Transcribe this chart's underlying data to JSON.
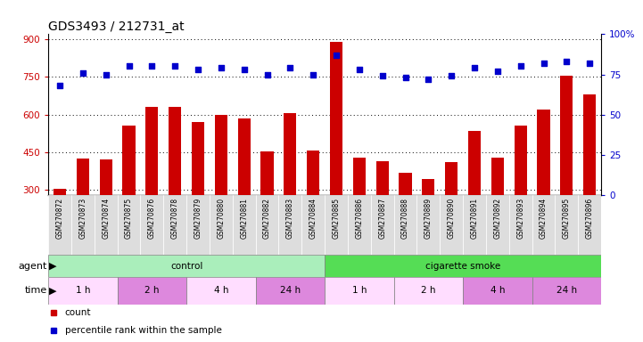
{
  "title": "GDS3493 / 212731_at",
  "samples": [
    "GSM270872",
    "GSM270873",
    "GSM270874",
    "GSM270875",
    "GSM270876",
    "GSM270878",
    "GSM270879",
    "GSM270880",
    "GSM270881",
    "GSM270882",
    "GSM270883",
    "GSM270884",
    "GSM270885",
    "GSM270886",
    "GSM270887",
    "GSM270888",
    "GSM270889",
    "GSM270890",
    "GSM270891",
    "GSM270892",
    "GSM270893",
    "GSM270894",
    "GSM270895",
    "GSM270896"
  ],
  "counts": [
    305,
    425,
    422,
    555,
    630,
    630,
    570,
    600,
    585,
    455,
    605,
    458,
    890,
    430,
    415,
    370,
    345,
    410,
    535,
    430,
    555,
    620,
    755,
    680
  ],
  "percentiles": [
    68,
    76,
    75,
    80,
    80,
    80,
    78,
    79,
    78,
    75,
    79,
    75,
    87,
    78,
    74,
    73,
    72,
    74,
    79,
    77,
    80,
    82,
    83,
    82
  ],
  "bar_color": "#cc0000",
  "dot_color": "#0000cc",
  "ylim_left": [
    280,
    920
  ],
  "ylim_right": [
    0,
    100
  ],
  "yticks_left": [
    300,
    450,
    600,
    750,
    900
  ],
  "yticks_right": [
    0,
    25,
    50,
    75,
    100
  ],
  "ytick_labels_right": [
    "0",
    "25",
    "50",
    "75",
    "100%"
  ],
  "agent_groups": [
    {
      "label": "control",
      "start": 0,
      "end": 12,
      "color": "#aaeebb"
    },
    {
      "label": "cigarette smoke",
      "start": 12,
      "end": 24,
      "color": "#55dd55"
    }
  ],
  "time_groups": [
    {
      "label": "1 h",
      "start": 0,
      "end": 3,
      "color": "#ffddff"
    },
    {
      "label": "2 h",
      "start": 3,
      "end": 6,
      "color": "#dd88dd"
    },
    {
      "label": "4 h",
      "start": 6,
      "end": 9,
      "color": "#ffddff"
    },
    {
      "label": "24 h",
      "start": 9,
      "end": 12,
      "color": "#dd88dd"
    },
    {
      "label": "1 h",
      "start": 12,
      "end": 15,
      "color": "#ffddff"
    },
    {
      "label": "2 h",
      "start": 15,
      "end": 18,
      "color": "#ffddff"
    },
    {
      "label": "4 h",
      "start": 18,
      "end": 21,
      "color": "#dd88dd"
    },
    {
      "label": "24 h",
      "start": 21,
      "end": 24,
      "color": "#dd88dd"
    }
  ],
  "legend_count_color": "#cc0000",
  "legend_dot_color": "#0000cc",
  "bg_color": "#ffffff",
  "tick_label_color_left": "#cc0000",
  "tick_label_color_right": "#0000cc",
  "sample_bg_color": "#dddddd",
  "title_fontsize": 10,
  "tick_fontsize": 7.5,
  "sample_fontsize": 5.5,
  "label_fontsize": 7.5,
  "row_label_fontsize": 8
}
